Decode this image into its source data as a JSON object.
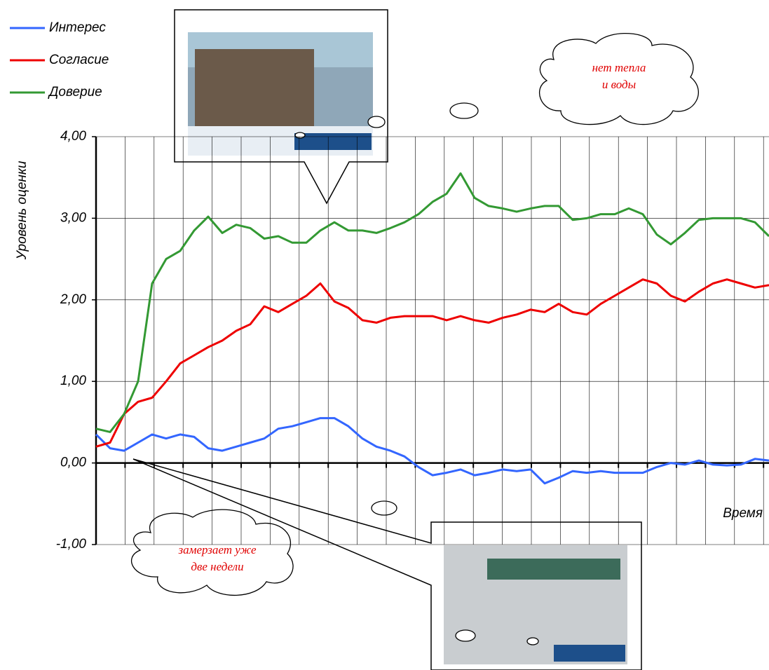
{
  "chart_data": {
    "type": "line",
    "xlabel": "Время",
    "ylabel": "Уровень оценки",
    "ylim": [
      -1,
      4
    ],
    "yticks": [
      {
        "value": -1,
        "label": "-1,00"
      },
      {
        "value": 0,
        "label": "0,00"
      },
      {
        "value": 1,
        "label": "1,00"
      },
      {
        "value": 2,
        "label": "2,00"
      },
      {
        "value": 3,
        "label": "3,00"
      },
      {
        "value": 4,
        "label": "4,00"
      }
    ],
    "grid": true,
    "series": [
      {
        "name": "Интерес",
        "color": "#3366ff",
        "values": [
          0.35,
          0.18,
          0.15,
          0.25,
          0.35,
          0.3,
          0.35,
          0.32,
          0.18,
          0.15,
          0.2,
          0.25,
          0.3,
          0.42,
          0.45,
          0.5,
          0.55,
          0.55,
          0.45,
          0.3,
          0.2,
          0.15,
          0.08,
          -0.05,
          -0.15,
          -0.12,
          -0.08,
          -0.15,
          -0.12,
          -0.08,
          -0.1,
          -0.08,
          -0.25,
          -0.18,
          -0.1,
          -0.12,
          -0.1,
          -0.12,
          -0.12,
          -0.12,
          -0.05,
          0.0,
          -0.02,
          0.03,
          -0.02,
          -0.03,
          -0.02,
          0.05,
          0.03
        ]
      },
      {
        "name": "Согласие",
        "color": "#ee0000",
        "values": [
          0.2,
          0.25,
          0.6,
          0.75,
          0.8,
          1.0,
          1.22,
          1.32,
          1.42,
          1.5,
          1.62,
          1.7,
          1.92,
          1.85,
          1.95,
          2.05,
          2.2,
          1.98,
          1.9,
          1.75,
          1.72,
          1.78,
          1.8,
          1.8,
          1.8,
          1.75,
          1.8,
          1.75,
          1.72,
          1.78,
          1.82,
          1.88,
          1.85,
          1.95,
          1.85,
          1.82,
          1.95,
          2.05,
          2.15,
          2.25,
          2.2,
          2.05,
          1.98,
          2.1,
          2.2,
          2.25,
          2.2,
          2.15,
          2.18
        ]
      },
      {
        "name": "Доверие",
        "color": "#339933",
        "values": [
          0.42,
          0.38,
          0.6,
          1.0,
          2.2,
          2.5,
          2.6,
          2.85,
          3.02,
          2.82,
          2.92,
          2.88,
          2.75,
          2.78,
          2.7,
          2.7,
          2.85,
          2.95,
          2.85,
          2.85,
          2.82,
          2.88,
          2.95,
          3.05,
          3.2,
          3.3,
          3.55,
          3.25,
          3.15,
          3.12,
          3.08,
          3.12,
          3.15,
          3.15,
          2.98,
          3.0,
          3.05,
          3.05,
          3.12,
          3.05,
          2.8,
          2.68,
          2.82,
          2.98,
          3.0,
          3.0,
          3.0,
          2.95,
          2.78
        ]
      }
    ],
    "annotations": [
      [
        "нет тепла",
        "и воды"
      ],
      [
        "замерзает уже",
        "две недели"
      ]
    ]
  }
}
